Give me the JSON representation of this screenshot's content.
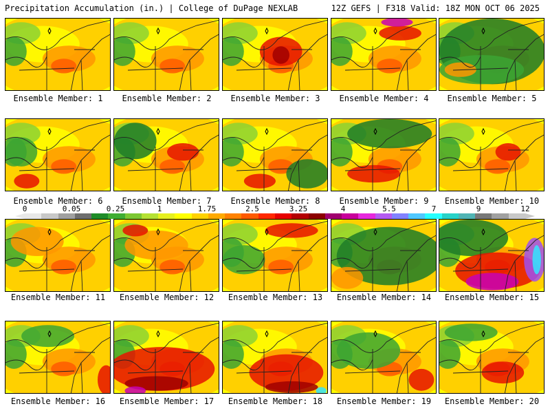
{
  "header": {
    "left_title": "Precipitation Accumulation (in.) | College of DuPage NEXLAB",
    "right_title": "12Z GEFS | F318 Valid: 18Z MON OCT 06 2025"
  },
  "panels": [
    {
      "label": "Ensemble Member: 1"
    },
    {
      "label": "Ensemble Member: 2"
    },
    {
      "label": "Ensemble Member: 3"
    },
    {
      "label": "Ensemble Member: 4"
    },
    {
      "label": "Ensemble Member: 5"
    },
    {
      "label": "Ensemble Member: 6"
    },
    {
      "label": "Ensemble Member: 7"
    },
    {
      "label": "Ensemble Member: 8"
    },
    {
      "label": "Ensemble Member: 9"
    },
    {
      "label": "Ensemble Member: 10"
    },
    {
      "label": "Ensemble Member: 11"
    },
    {
      "label": "Ensemble Member: 12"
    },
    {
      "label": "Ensemble Member: 13"
    },
    {
      "label": "Ensemble Member: 14"
    },
    {
      "label": "Ensemble Member: 15"
    },
    {
      "label": "Ensemble Member: 16"
    },
    {
      "label": "Ensemble Member: 17"
    },
    {
      "label": "Ensemble Member: 18"
    },
    {
      "label": "Ensemble Member: 19"
    },
    {
      "label": "Ensemble Member: 20"
    }
  ],
  "colorbar": {
    "ticks": [
      "0",
      "0.05",
      "0.25",
      "1",
      "1.75",
      "2.5",
      "3.25",
      "4",
      "5.5",
      "7",
      "9",
      "12"
    ],
    "colors": [
      "#e8e8e8",
      "#c8c8c8",
      "#a0a0a0",
      "#6e6e6e",
      "#1e8c28",
      "#3fae32",
      "#7cc832",
      "#b4e132",
      "#e6f01e",
      "#ffff00",
      "#ffd200",
      "#ffaa00",
      "#ff8200",
      "#ff5a00",
      "#ff2800",
      "#e60000",
      "#b40000",
      "#8c0000",
      "#a0006e",
      "#c8009b",
      "#e628dc",
      "#b45af0",
      "#8282ff",
      "#50c8ff",
      "#28ffff",
      "#28d2c8",
      "#50b4b4",
      "#787878",
      "#a0a0a0",
      "#c8c8c8"
    ]
  },
  "map_colors": {
    "green_dark": "#1e7d28",
    "green": "#3ca532",
    "lime": "#8cd232",
    "yellow": "#ffff00",
    "gold": "#ffc800",
    "orange": "#ff9600",
    "red_orange": "#ff5a00",
    "red": "#e61400",
    "dark_red": "#a00000",
    "magenta": "#c800b4",
    "purple": "#a050f0",
    "cyan": "#32e6ff"
  }
}
